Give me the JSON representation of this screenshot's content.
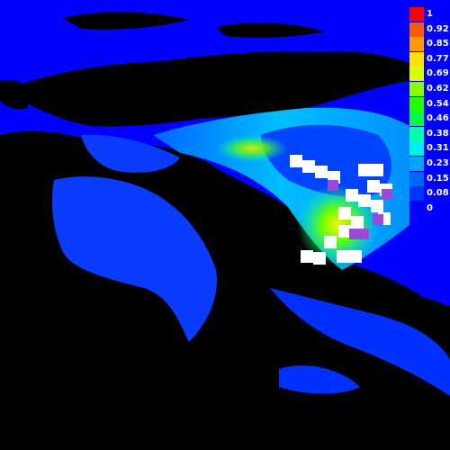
{
  "legend": {
    "entries": [
      {
        "label": "1",
        "color": "#ff0000"
      },
      {
        "label": "0.92",
        "color": "#ff5a00"
      },
      {
        "label": "0.85",
        "color": "#ff9a00"
      },
      {
        "label": "0.77",
        "color": "#ffe100"
      },
      {
        "label": "0.69",
        "color": "#d8ff00"
      },
      {
        "label": "0.62",
        "color": "#88ff00"
      },
      {
        "label": "0.54",
        "color": "#22ff00"
      },
      {
        "label": "0.46",
        "color": "#00ff44"
      },
      {
        "label": "0.38",
        "color": "#00ffaa"
      },
      {
        "label": "0.31",
        "color": "#00f0f0"
      },
      {
        "label": "0.23",
        "color": "#00a6ff"
      },
      {
        "label": "0.15",
        "color": "#0066ff"
      },
      {
        "label": "0.08",
        "color": "#0033ff"
      },
      {
        "label": "0",
        "color": "#0000ff"
      }
    ]
  },
  "colors": {
    "sea": "#0000ff",
    "land": "#000000",
    "station": "#ffffff",
    "station_marker": "#9b49d6"
  }
}
